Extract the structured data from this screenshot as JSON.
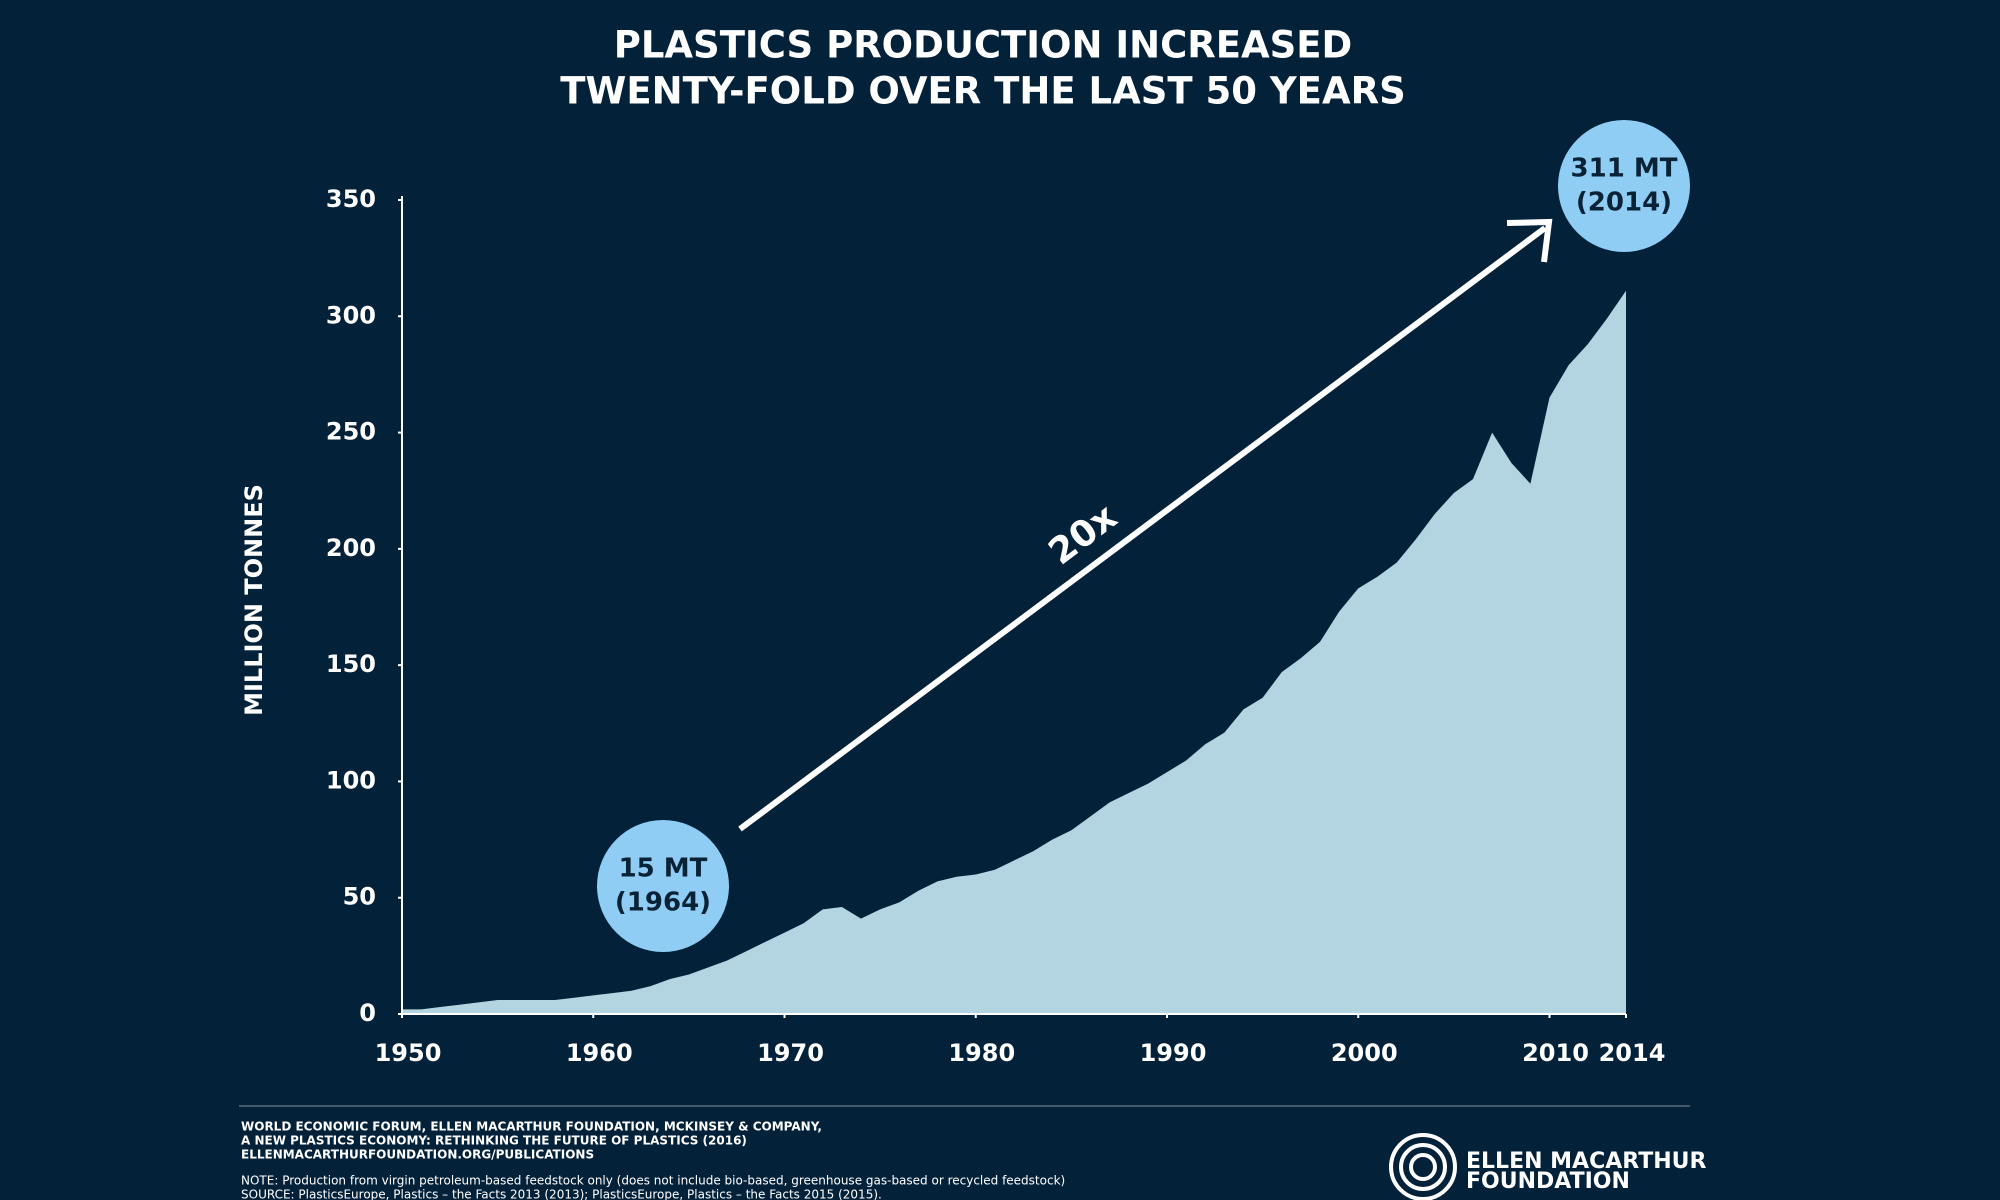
{
  "chart_data": {
    "type": "area",
    "title": [
      "PLASTICS PRODUCTION INCREASED",
      "TWENTY-FOLD OVER THE LAST 50 YEARS"
    ],
    "ylabel": "MILLION TONNES",
    "x": [
      1950,
      1951,
      1952,
      1953,
      1954,
      1955,
      1956,
      1957,
      1958,
      1959,
      1960,
      1961,
      1962,
      1963,
      1964,
      1965,
      1966,
      1967,
      1968,
      1969,
      1970,
      1971,
      1972,
      1973,
      1974,
      1975,
      1976,
      1977,
      1978,
      1979,
      1980,
      1981,
      1982,
      1983,
      1984,
      1985,
      1986,
      1987,
      1988,
      1989,
      1990,
      1991,
      1992,
      1993,
      1994,
      1995,
      1996,
      1997,
      1998,
      1999,
      2000,
      2001,
      2002,
      2003,
      2004,
      2005,
      2006,
      2007,
      2008,
      2009,
      2010,
      2011,
      2012,
      2013,
      2014
    ],
    "values": [
      2,
      2,
      3,
      4,
      5,
      6,
      6,
      6,
      6,
      7,
      8,
      9,
      10,
      12,
      15,
      17,
      20,
      23,
      27,
      31,
      35,
      39,
      45,
      46,
      41,
      45,
      48,
      53,
      57,
      59,
      60,
      62,
      66,
      70,
      75,
      79,
      85,
      91,
      95,
      99,
      104,
      109,
      116,
      121,
      131,
      136,
      147,
      153,
      160,
      173,
      183,
      188,
      194,
      204,
      215,
      224,
      230,
      250,
      237,
      228,
      265,
      279,
      288,
      299,
      311
    ],
    "color": "#b3d5e1",
    "xlim": [
      1950,
      2014
    ],
    "xticks": [
      1950,
      1960,
      1970,
      1980,
      1990,
      2000,
      2010,
      2014
    ],
    "ylim": [
      0,
      350
    ],
    "yticks": [
      0,
      50,
      100,
      150,
      200,
      250,
      300,
      350
    ],
    "annotations": [
      [
        "15 MT",
        "(1964)"
      ],
      [
        "311 MT",
        "(2014)"
      ],
      "20x"
    ],
    "credits": [
      "WORLD ECONOMIC FORUM, ELLEN MACARTHUR FOUNDATION, MCKINSEY & COMPANY,",
      "A NEW PLASTICS ECONOMY: RETHINKING THE FUTURE OF PLASTICS (2016)",
      "ELLENMACARTHURFOUNDATION.ORG/PUBLICATIONS"
    ],
    "note": "NOTE: Production from virgin petroleum-based feedstock only (does not include bio-based, greenhouse gas-based or recycled feedstock)",
    "source": "SOURCE: PlasticsEurope, Plastics – the Facts 2013 (2013); PlasticsEurope, Plastics – the Facts 2015 (2015).",
    "logo": [
      "ELLEN MACARTHUR",
      "FOUNDATION"
    ]
  }
}
